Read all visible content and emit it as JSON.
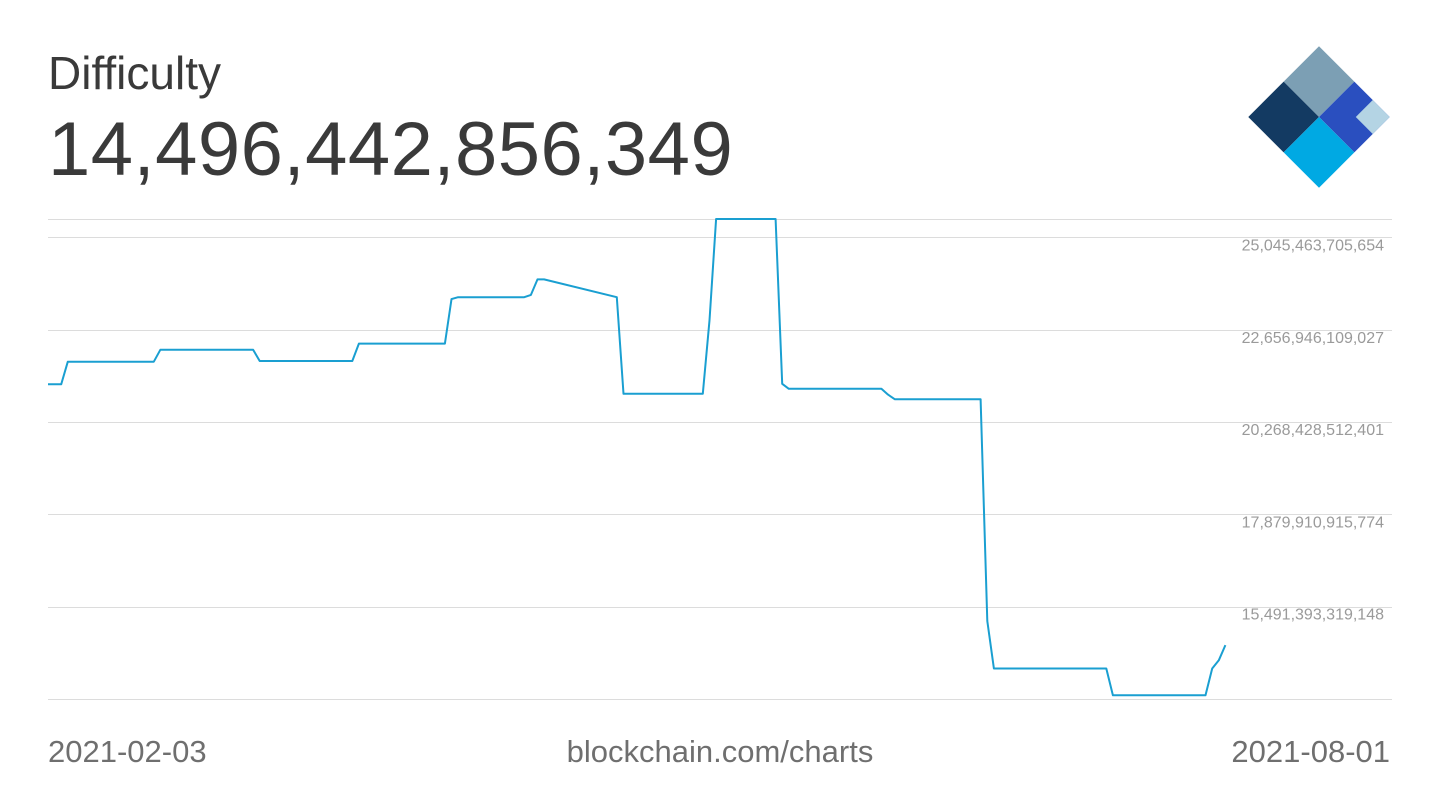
{
  "header": {
    "title": "Difficulty",
    "current_value": "14,496,442,856,349"
  },
  "logo": {
    "icon": "blockchain-diamond-logo",
    "colors": [
      "#7c9fb4",
      "#133a62",
      "#2a4fbf",
      "#00a9e3",
      "#b4d4e4"
    ]
  },
  "footer": {
    "start_date": "2021-02-03",
    "source": "blockchain.com/charts",
    "end_date": "2021-08-01"
  },
  "chart_data": {
    "type": "line",
    "title": "Difficulty",
    "xlabel": "",
    "ylabel": "",
    "line_color": "#1a9fd1",
    "grid": true,
    "ylim": [
      13102875722521,
      25523167224979
    ],
    "yticks": [
      {
        "value": 25045463705654,
        "label": "25,045,463,705,654"
      },
      {
        "value": 22656946109027,
        "label": "22,656,946,109,027"
      },
      {
        "value": 20268428512401,
        "label": "20,268,428,512,401"
      },
      {
        "value": 17879910915774,
        "label": "17,879,910,915,774"
      },
      {
        "value": 15491393319148,
        "label": "15,491,393,319,148"
      }
    ],
    "x_range": [
      "2021-02-03",
      "2021-08-01"
    ],
    "series": [
      {
        "x": [
          "2021-02-03",
          "2021-02-05",
          "2021-02-06",
          "2021-02-19",
          "2021-02-20",
          "2021-03-06",
          "2021-03-07",
          "2021-03-21",
          "2021-03-22",
          "2021-04-04",
          "2021-04-05",
          "2021-04-06",
          "2021-04-16",
          "2021-04-17",
          "2021-04-18",
          "2021-04-19",
          "2021-04-30",
          "2021-05-01",
          "2021-05-02",
          "2021-05-13",
          "2021-05-14",
          "2021-05-15",
          "2021-05-24",
          "2021-05-25",
          "2021-05-26",
          "2021-06-09",
          "2021-06-10",
          "2021-06-11",
          "2021-06-24",
          "2021-06-25",
          "2021-06-26",
          "2021-07-13",
          "2021-07-14",
          "2021-07-15",
          "2021-07-28",
          "2021-07-29",
          "2021-07-30",
          "2021-07-31"
        ],
        "values": [
          21245000000000,
          21245000000000,
          21830000000000,
          21830000000000,
          22140000000000,
          22140000000000,
          21850000000000,
          21850000000000,
          22300000000000,
          22300000000000,
          23450000000000,
          23500000000000,
          23500000000000,
          23560000000000,
          23960000000000,
          23960000000000,
          23500000000000,
          21000000000000,
          21000000000000,
          21000000000000,
          22900000000000,
          25523167224979,
          25523167224979,
          21260000000000,
          21130000000000,
          21130000000000,
          20980000000000,
          20860000000000,
          20860000000000,
          15120000000000,
          13892000000000,
          13892000000000,
          13200000000000,
          13200000000000,
          13200000000000,
          13892000000000,
          14105000000000,
          14496442856349
        ]
      }
    ]
  }
}
